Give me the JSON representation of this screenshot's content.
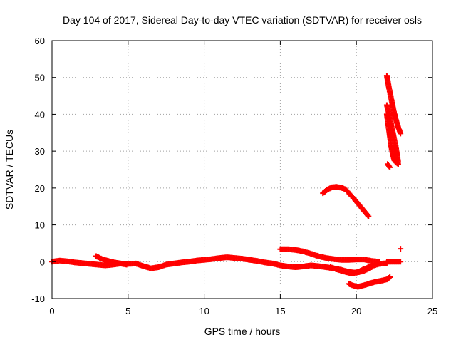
{
  "chart_data": {
    "type": "scatter",
    "title": "Day 104 of 2017, Sidereal Day-to-day VTEC variation (SDTVAR) for receiver osls",
    "xlabel": "GPS time / hours",
    "ylabel": "SDTVAR / TECUs",
    "xlim": [
      0,
      25
    ],
    "ylim": [
      -10,
      60
    ],
    "xticks": [
      0,
      5,
      10,
      15,
      20,
      25
    ],
    "yticks": [
      -10,
      0,
      10,
      20,
      30,
      40,
      50,
      60
    ],
    "xtick_labels": [
      "0",
      "5",
      "10",
      "15",
      "20",
      "25"
    ],
    "ytick_labels": [
      "-10",
      "0",
      "10",
      "20",
      "30",
      "40",
      "50",
      "60"
    ],
    "grid": true,
    "legend": "none",
    "marker": "plus",
    "color": "#ff0000",
    "series": [
      {
        "name": "main-baseline",
        "x": [
          0,
          0.5,
          1,
          1.5,
          2,
          2.5,
          3,
          3.5,
          4,
          4.5,
          5,
          5.5,
          6,
          6.5,
          7,
          7.5,
          8,
          8.5,
          9,
          9.5,
          10,
          10.5,
          11,
          11.5,
          12,
          12.5,
          13,
          13.5,
          14,
          14.5,
          15,
          15.5,
          16,
          16.5,
          17,
          17.5,
          18,
          18.5,
          19,
          19.5,
          20,
          20.5,
          21
        ],
        "y": [
          0,
          0.3,
          0.1,
          -0.2,
          -0.4,
          -0.6,
          -0.8,
          -1,
          -0.8,
          -0.5,
          -0.6,
          -0.5,
          -1.2,
          -1.8,
          -1.5,
          -0.8,
          -0.5,
          -0.2,
          0,
          0.3,
          0.5,
          0.7,
          1,
          1.2,
          1,
          0.8,
          0.5,
          0.2,
          -0.2,
          -0.5,
          -1,
          -1.3,
          -1.5,
          -1.3,
          -1,
          -1.2,
          -1.5,
          -1.8,
          -2.2,
          -2.8,
          -3,
          -2.5,
          -1.5
        ]
      },
      {
        "name": "thin-band-2-5h",
        "x": [
          2.9,
          3.3,
          3.7,
          4.1,
          4.5,
          4.9
        ],
        "y": [
          1.5,
          0.7,
          0.2,
          -0.2,
          -0.5,
          -0.8
        ]
      },
      {
        "name": "upper-branch",
        "x": [
          15,
          15.5,
          16,
          16.5,
          17,
          17.5,
          18,
          18.5,
          19,
          19.5,
          20,
          20.5,
          21,
          21.5
        ],
        "y": [
          3.4,
          3.4,
          3.2,
          2.8,
          2.2,
          1.5,
          1,
          0.7,
          0.5,
          0.5,
          0.6,
          0.6,
          0.2,
          0
        ]
      },
      {
        "name": "lower-branch",
        "x": [
          18.3,
          18.8,
          19.3,
          19.7,
          20.1,
          20.5,
          21,
          21.5,
          22
        ],
        "y": [
          -1.5,
          -2.2,
          -2.8,
          -3.2,
          -2.8,
          -2,
          -1.2,
          -0.6,
          -0.4
        ]
      },
      {
        "name": "bottom-branch",
        "x": [
          19.5,
          19.8,
          20.1,
          20.4,
          20.8,
          21.2,
          21.6,
          22,
          22.2
        ],
        "y": [
          -6,
          -6.5,
          -6.8,
          -6.5,
          -6,
          -5.5,
          -5.2,
          -4.8,
          -4.2
        ]
      },
      {
        "name": "late-flat",
        "x": [
          22,
          22.3,
          22.6,
          22.9
        ],
        "y": [
          0,
          0,
          0,
          0
        ]
      },
      {
        "name": "late-spike",
        "x": [
          22.9
        ],
        "y": [
          3.5
        ]
      },
      {
        "name": "arc",
        "x": [
          17.8,
          18.1,
          18.4,
          18.7,
          19,
          19.3,
          19.6,
          19.9,
          20.2,
          20.5,
          20.8
        ],
        "y": [
          18.6,
          19.6,
          20.2,
          20.3,
          20.1,
          19.6,
          18.2,
          16.8,
          15.3,
          13.8,
          12.3
        ]
      },
      {
        "name": "steep-top",
        "x": [
          22,
          22.15,
          22.3,
          22.45,
          22.6,
          22.75,
          22.9
        ],
        "y": [
          50.5,
          47,
          44,
          41,
          38.5,
          36.5,
          34.8
        ]
      },
      {
        "name": "steep-mid",
        "x": [
          22,
          22.15,
          22.3,
          22.45,
          22.6,
          22.75
        ],
        "y": [
          42.5,
          40,
          37,
          34,
          31,
          27
        ]
      },
      {
        "name": "steep-low",
        "x": [
          22,
          22.1,
          22.2,
          22.3,
          22.4,
          22.5,
          22.6,
          22.75
        ],
        "y": [
          40,
          37,
          34,
          31,
          29,
          27.5,
          27,
          26.5
        ]
      },
      {
        "name": "short-segment",
        "x": [
          22.05,
          22.2
        ],
        "y": [
          26.5,
          25.6
        ]
      }
    ]
  }
}
